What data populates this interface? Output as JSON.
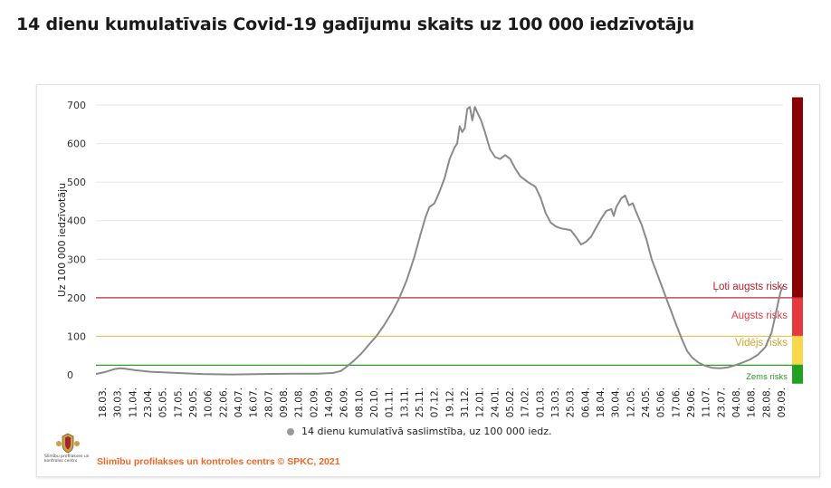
{
  "page": {
    "title": "14 dienu kumulatīvais Covid-19 gadījumu skaits uz 100 000 iedzīvotāju"
  },
  "chart_data": {
    "type": "line",
    "title": "14 dienu kumulatīvais Covid-19 gadījumu skaits uz 100 000 iedzīvotāju",
    "ylabel": "Uz 100 000 iedzīvotāju",
    "xlabel": "",
    "ylim": [
      0,
      700
    ],
    "yticks": [
      0,
      100,
      200,
      300,
      400,
      500,
      600,
      700
    ],
    "xlim": [
      "2020-03-18",
      "2021-09-13"
    ],
    "x_tick_labels": [
      "18.03.",
      "30.03.",
      "11.04.",
      "23.04.",
      "05.05.",
      "17.05.",
      "29.05.",
      "10.06.",
      "22.06.",
      "04.07.",
      "16.07.",
      "28.07.",
      "09.08.",
      "21.08.",
      "02.09.",
      "14.09.",
      "26.09.",
      "08.10.",
      "20.10.",
      "01.11.",
      "13.11.",
      "25.11.",
      "07.12.",
      "19.12.",
      "31.12.",
      "12.01.",
      "24.01.",
      "05.02.",
      "17.02.",
      "01.03.",
      "13.03.",
      "25.03.",
      "06.04.",
      "18.04.",
      "30.04.",
      "12.05.",
      "24.05.",
      "05.06.",
      "17.06.",
      "29.06.",
      "11.07.",
      "23.07.",
      "04.08.",
      "16.08.",
      "28.08.",
      "09.09."
    ],
    "grid": true,
    "legend_position": "bottom",
    "series": [
      {
        "name": "14 dienu kumulatīvā saslimstība, uz 100 000 iedz.",
        "color": "#8a8a8a",
        "points": [
          [
            "2020-03-18",
            2
          ],
          [
            "2020-03-26",
            8
          ],
          [
            "2020-04-02",
            15
          ],
          [
            "2020-04-06",
            17
          ],
          [
            "2020-04-10",
            16
          ],
          [
            "2020-04-18",
            12
          ],
          [
            "2020-04-30",
            8
          ],
          [
            "2020-05-20",
            5
          ],
          [
            "2020-06-10",
            2
          ],
          [
            "2020-07-04",
            1
          ],
          [
            "2020-07-28",
            2
          ],
          [
            "2020-08-21",
            3
          ],
          [
            "2020-09-10",
            3
          ],
          [
            "2020-09-22",
            5
          ],
          [
            "2020-09-28",
            10
          ],
          [
            "2020-10-02",
            20
          ],
          [
            "2020-10-08",
            36
          ],
          [
            "2020-10-14",
            55
          ],
          [
            "2020-10-20",
            78
          ],
          [
            "2020-10-26",
            100
          ],
          [
            "2020-11-01",
            128
          ],
          [
            "2020-11-07",
            160
          ],
          [
            "2020-11-13",
            198
          ],
          [
            "2020-11-19",
            245
          ],
          [
            "2020-11-25",
            305
          ],
          [
            "2020-11-30",
            365
          ],
          [
            "2020-12-04",
            410
          ],
          [
            "2020-12-07",
            435
          ],
          [
            "2020-12-11",
            445
          ],
          [
            "2020-12-15",
            475
          ],
          [
            "2020-12-19",
            510
          ],
          [
            "2020-12-23",
            560
          ],
          [
            "2020-12-27",
            590
          ],
          [
            "2020-12-29",
            600
          ],
          [
            "2020-12-31",
            645
          ],
          [
            "2021-01-02",
            630
          ],
          [
            "2021-01-04",
            640
          ],
          [
            "2021-01-06",
            690
          ],
          [
            "2021-01-08",
            695
          ],
          [
            "2021-01-10",
            660
          ],
          [
            "2021-01-12",
            695
          ],
          [
            "2021-01-14",
            680
          ],
          [
            "2021-01-17",
            660
          ],
          [
            "2021-01-20",
            630
          ],
          [
            "2021-01-24",
            585
          ],
          [
            "2021-01-28",
            565
          ],
          [
            "2021-02-01",
            560
          ],
          [
            "2021-02-05",
            570
          ],
          [
            "2021-02-09",
            560
          ],
          [
            "2021-02-13",
            535
          ],
          [
            "2021-02-17",
            515
          ],
          [
            "2021-02-23",
            500
          ],
          [
            "2021-03-01",
            488
          ],
          [
            "2021-03-05",
            460
          ],
          [
            "2021-03-09",
            420
          ],
          [
            "2021-03-13",
            395
          ],
          [
            "2021-03-17",
            385
          ],
          [
            "2021-03-21",
            380
          ],
          [
            "2021-03-25",
            378
          ],
          [
            "2021-03-29",
            375
          ],
          [
            "2021-04-02",
            358
          ],
          [
            "2021-04-06",
            338
          ],
          [
            "2021-04-10",
            345
          ],
          [
            "2021-04-14",
            358
          ],
          [
            "2021-04-18",
            382
          ],
          [
            "2021-04-22",
            405
          ],
          [
            "2021-04-26",
            425
          ],
          [
            "2021-04-30",
            430
          ],
          [
            "2021-05-02",
            412
          ],
          [
            "2021-05-04",
            435
          ],
          [
            "2021-05-08",
            458
          ],
          [
            "2021-05-11",
            465
          ],
          [
            "2021-05-14",
            440
          ],
          [
            "2021-05-17",
            445
          ],
          [
            "2021-05-20",
            420
          ],
          [
            "2021-05-24",
            390
          ],
          [
            "2021-05-28",
            350
          ],
          [
            "2021-06-01",
            300
          ],
          [
            "2021-06-05",
            265
          ],
          [
            "2021-06-09",
            230
          ],
          [
            "2021-06-13",
            195
          ],
          [
            "2021-06-17",
            160
          ],
          [
            "2021-06-21",
            125
          ],
          [
            "2021-06-25",
            92
          ],
          [
            "2021-06-29",
            62
          ],
          [
            "2021-07-03",
            45
          ],
          [
            "2021-07-08",
            32
          ],
          [
            "2021-07-13",
            24
          ],
          [
            "2021-07-19",
            18
          ],
          [
            "2021-07-25",
            17
          ],
          [
            "2021-07-31",
            19
          ],
          [
            "2021-08-06",
            25
          ],
          [
            "2021-08-12",
            32
          ],
          [
            "2021-08-18",
            40
          ],
          [
            "2021-08-24",
            52
          ],
          [
            "2021-08-30",
            72
          ],
          [
            "2021-09-04",
            110
          ],
          [
            "2021-09-08",
            170
          ],
          [
            "2021-09-11",
            215
          ],
          [
            "2021-09-13",
            230
          ]
        ]
      }
    ],
    "risk_thresholds": [
      {
        "label": "Ļoti augsts risks",
        "value": 200,
        "line_color": "#c22a37",
        "text_color": "#b0222d",
        "band_color": "#8b0000",
        "band_from": 200,
        "band_to": 720
      },
      {
        "label": "Augsts risks",
        "value": 100,
        "line_color": "#ecc54a",
        "text_color": "#e23a44",
        "band_color": "#e5383f",
        "band_from": 100,
        "band_to": 200
      },
      {
        "label": "Vidējs risks",
        "value": 25,
        "line_color": "#2aa02a",
        "text_color": "#d9a32a",
        "band_color": "#f8d84a",
        "band_from": 25,
        "band_to": 100
      },
      {
        "label": "Zems risks",
        "value": 0,
        "line_color": "",
        "text_color": "#2b9a2b",
        "band_color": "#22a022",
        "band_from": -23,
        "band_to": 25
      }
    ]
  },
  "footer": {
    "credit": "Slimību profilakses un kontroles centrs © SPKC, 2021",
    "logo_caption": "Slimību profilakses un kontroles centrs",
    "brand_color": "#f26522"
  }
}
